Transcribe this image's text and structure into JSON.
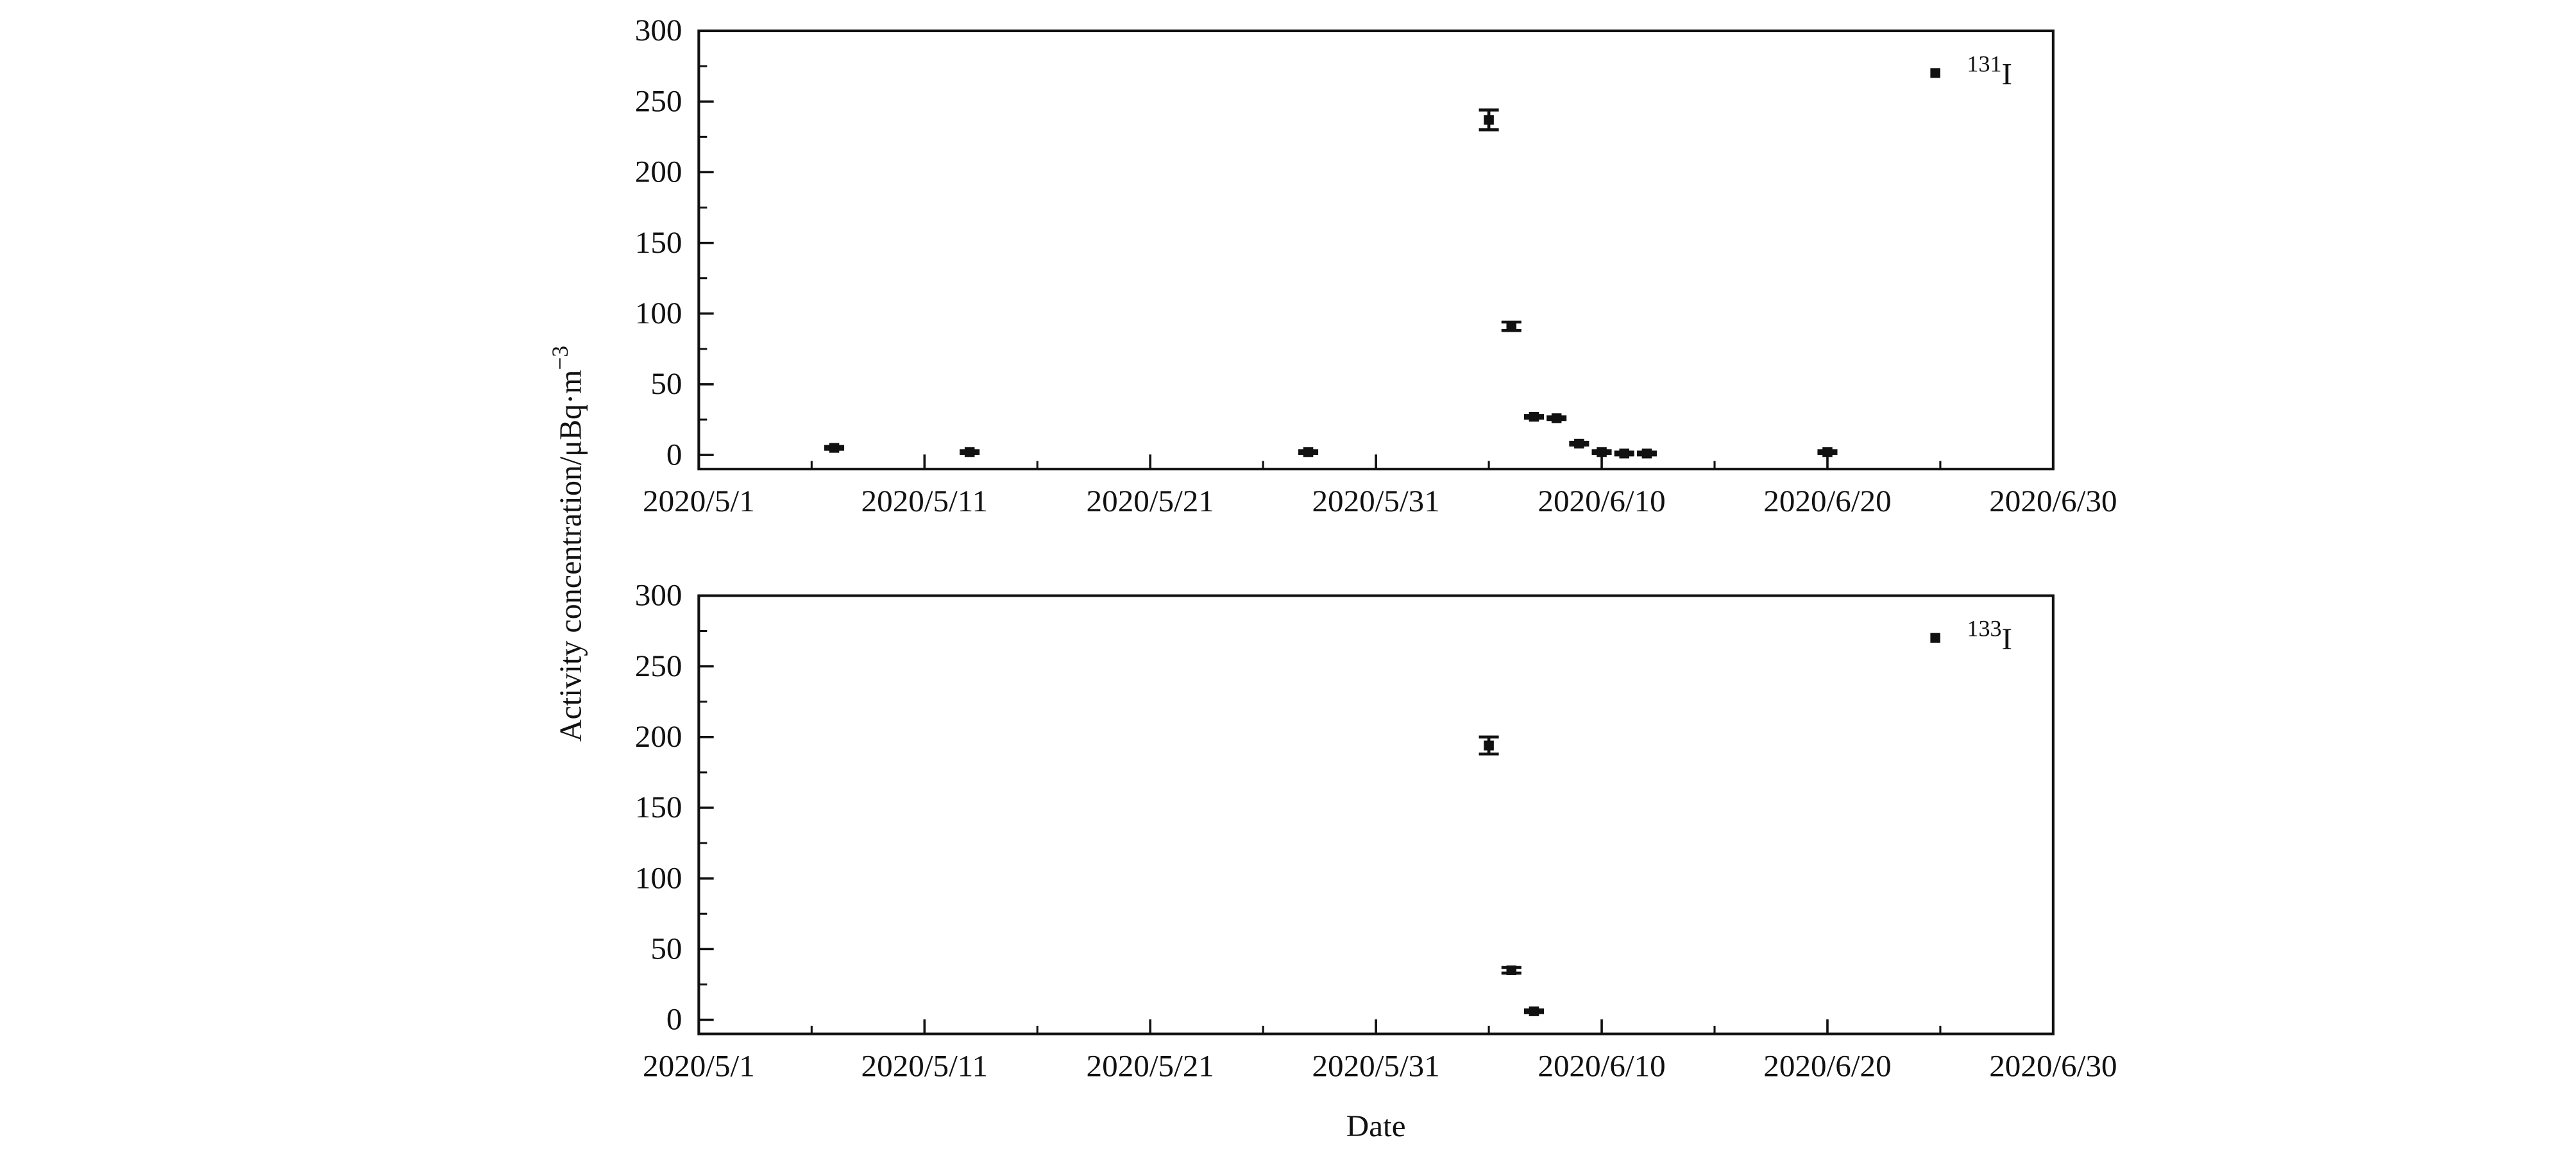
{
  "chart_data": [
    {
      "type": "scatter",
      "ylabel": "Activity concentration/μBq·m",
      "ylabel_superscript": "−3",
      "xlim": [
        "2020/5/1",
        "2020/6/30"
      ],
      "xticks": [
        "2020/5/1",
        "2020/5/11",
        "2020/5/21",
        "2020/5/31",
        "2020/6/10",
        "2020/6/20",
        "2020/6/30"
      ],
      "xminorticks": [
        "2020/5/6",
        "2020/5/16",
        "2020/5/26",
        "2020/6/5",
        "2020/6/15",
        "2020/6/25"
      ],
      "ylim": [
        -10,
        300
      ],
      "yticks": [
        0,
        50,
        100,
        150,
        200,
        250,
        300
      ],
      "yminorticks": [
        25,
        75,
        125,
        175,
        225,
        275
      ],
      "series": [
        {
          "name_superscript": "131",
          "name": "I",
          "color": "#111111",
          "x": [
            "2020/5/7",
            "2020/5/13",
            "2020/5/28",
            "2020/6/5",
            "2020/6/6",
            "2020/6/7",
            "2020/6/8",
            "2020/6/9",
            "2020/6/10",
            "2020/6/11",
            "2020/6/12",
            "2020/6/20"
          ],
          "values": [
            5,
            2,
            2,
            237,
            91,
            27,
            26,
            8,
            2,
            1,
            1,
            2
          ],
          "errors": [
            1,
            1,
            1,
            7,
            3,
            1,
            1,
            1,
            1,
            1,
            1,
            1
          ]
        }
      ]
    },
    {
      "type": "scatter",
      "xlabel": "Date",
      "xlim": [
        "2020/5/1",
        "2020/6/30"
      ],
      "xticks": [
        "2020/5/1",
        "2020/5/11",
        "2020/5/21",
        "2020/5/31",
        "2020/6/10",
        "2020/6/20",
        "2020/6/30"
      ],
      "xminorticks": [
        "2020/5/6",
        "2020/5/16",
        "2020/5/26",
        "2020/6/5",
        "2020/6/15",
        "2020/6/25"
      ],
      "ylim": [
        -10,
        300
      ],
      "yticks": [
        0,
        50,
        100,
        150,
        200,
        250,
        300
      ],
      "yminorticks": [
        25,
        75,
        125,
        175,
        225,
        275
      ],
      "series": [
        {
          "name_superscript": "133",
          "name": "I",
          "color": "#111111",
          "x": [
            "2020/6/5",
            "2020/6/6",
            "2020/6/7"
          ],
          "values": [
            194,
            35,
            6
          ],
          "errors": [
            6,
            2,
            1
          ]
        }
      ]
    }
  ]
}
